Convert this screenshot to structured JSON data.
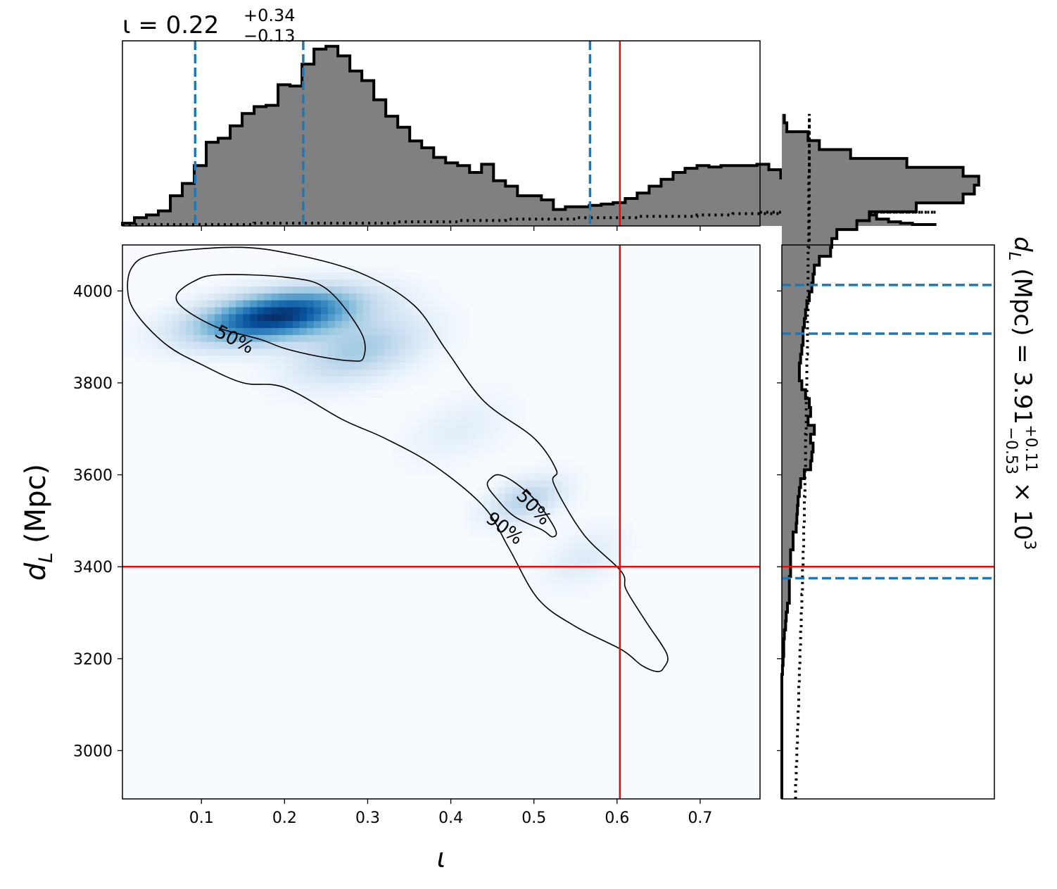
{
  "chart_data": [
    {
      "type": "histogram",
      "panel": "top-marginal",
      "title_lhs": "ι = 0.22",
      "title_sup": "+0.34",
      "title_sub": "−0.13",
      "xlim": [
        0.005,
        0.772
      ],
      "x_edges_start": 0.005,
      "bin_width": 0.0144,
      "heights": [
        2,
        6,
        8,
        11,
        22,
        31,
        44,
        61,
        64,
        73,
        82,
        87,
        88,
        103,
        102,
        118,
        129,
        131,
        124,
        113,
        106,
        92,
        80,
        72,
        62,
        57,
        50,
        46,
        44,
        39,
        45,
        33,
        29,
        22,
        22,
        19,
        12,
        14,
        14,
        15,
        16,
        17,
        20,
        24,
        29,
        34,
        39,
        42,
        44,
        43,
        44,
        44,
        44,
        45,
        41,
        35,
        33,
        22,
        20,
        19,
        18,
        15,
        8,
        5,
        3,
        2,
        1,
        1
      ],
      "prior_dotted": [
        1,
        1,
        1,
        1,
        1,
        1,
        1,
        1,
        1,
        1,
        1,
        2,
        2,
        2,
        2,
        2,
        2,
        2,
        2,
        2,
        2,
        2,
        2,
        3,
        3,
        3,
        3,
        3,
        4,
        4,
        4,
        4,
        5,
        5,
        5,
        5,
        5,
        5,
        6,
        6,
        6,
        6,
        6,
        7,
        7,
        7,
        7,
        7,
        8,
        8,
        8,
        9,
        9,
        9,
        9,
        9,
        9,
        9,
        9,
        10,
        10,
        10,
        10,
        10,
        10,
        10,
        10,
        10
      ],
      "ylim": [
        0,
        135
      ],
      "quantile_lines": [
        0.0925,
        0.2225,
        0.5675
      ],
      "truth_line": 0.6034,
      "quantile_color": "#1f77b4",
      "truth_color": "#ff0000",
      "fill_color": "#808080"
    },
    {
      "type": "heatmap",
      "panel": "joint",
      "xlabel": "ι",
      "ylabel": "d_L (Mpc)",
      "ylabel_main": "d",
      "ylabel_sub": "L",
      "ylabel_unit": " (Mpc)",
      "xlim": [
        0.005,
        0.772
      ],
      "ylim": [
        2895,
        4100
      ],
      "x_ticks": [
        "0.1",
        "0.2",
        "0.3",
        "0.4",
        "0.5",
        "0.6",
        "0.7"
      ],
      "x_tick_values": [
        0.1,
        0.2,
        0.3,
        0.4,
        0.5,
        0.6,
        0.7
      ],
      "y_ticks": [
        "3000",
        "3200",
        "3400",
        "3600",
        "3800",
        "4000"
      ],
      "y_tick_values": [
        3000,
        3200,
        3400,
        3600,
        3800,
        4000
      ],
      "colormap": "Blues",
      "density_peaks": [
        {
          "x": 0.19,
          "y": 3945,
          "amp": 1.0,
          "sx": 0.062,
          "sy": 48
        },
        {
          "x": 0.29,
          "y": 3870,
          "amp": 0.35,
          "sx": 0.05,
          "sy": 60
        },
        {
          "x": 0.49,
          "y": 3545,
          "amp": 0.3,
          "sx": 0.03,
          "sy": 42
        },
        {
          "x": 0.56,
          "y": 3420,
          "amp": 0.12,
          "sx": 0.03,
          "sy": 55
        },
        {
          "x": 0.41,
          "y": 3700,
          "amp": 0.1,
          "sx": 0.04,
          "sy": 60
        }
      ],
      "contour_90": [
        [
          0.016,
          4050
        ],
        [
          0.045,
          4080
        ],
        [
          0.14,
          4095
        ],
        [
          0.21,
          4080
        ],
        [
          0.29,
          4040
        ],
        [
          0.355,
          3970
        ],
        [
          0.395,
          3870
        ],
        [
          0.44,
          3760
        ],
        [
          0.5,
          3680
        ],
        [
          0.527,
          3610
        ],
        [
          0.524,
          3580
        ],
        [
          0.56,
          3470
        ],
        [
          0.605,
          3390
        ],
        [
          0.611,
          3350
        ],
        [
          0.635,
          3280
        ],
        [
          0.66,
          3210
        ],
        [
          0.656,
          3180
        ],
        [
          0.648,
          3172
        ],
        [
          0.63,
          3185
        ],
        [
          0.605,
          3220
        ],
        [
          0.55,
          3270
        ],
        [
          0.505,
          3330
        ],
        [
          0.47,
          3440
        ],
        [
          0.44,
          3530
        ],
        [
          0.38,
          3620
        ],
        [
          0.32,
          3680
        ],
        [
          0.27,
          3720
        ],
        [
          0.2,
          3790
        ],
        [
          0.15,
          3800
        ],
        [
          0.1,
          3840
        ],
        [
          0.06,
          3880
        ],
        [
          0.026,
          3940
        ],
        [
          0.012,
          3990
        ]
      ],
      "contour_50_main": [
        [
          0.07,
          3990
        ],
        [
          0.09,
          4020
        ],
        [
          0.12,
          4035
        ],
        [
          0.2,
          4030
        ],
        [
          0.25,
          4005
        ],
        [
          0.292,
          3910
        ],
        [
          0.295,
          3855
        ],
        [
          0.28,
          3848
        ],
        [
          0.24,
          3858
        ],
        [
          0.2,
          3875
        ],
        [
          0.17,
          3895
        ],
        [
          0.12,
          3920
        ],
        [
          0.08,
          3960
        ]
      ],
      "contour_50_small": [
        [
          0.448,
          3592
        ],
        [
          0.458,
          3600
        ],
        [
          0.478,
          3582
        ],
        [
          0.504,
          3540
        ],
        [
          0.526,
          3480
        ],
        [
          0.522,
          3465
        ],
        [
          0.51,
          3480
        ],
        [
          0.476,
          3510
        ],
        [
          0.452,
          3555
        ],
        [
          0.444,
          3578
        ]
      ],
      "contour_labels": [
        {
          "text": "50%",
          "x": 0.14,
          "y": 3895,
          "angle": 27
        },
        {
          "text": "50%",
          "x": 0.5,
          "y": 3530,
          "angle": 47
        },
        {
          "text": "90%",
          "x": 0.465,
          "y": 3484,
          "angle": 37
        }
      ],
      "truth": {
        "x": 0.6034,
        "y": 3400
      },
      "truth_color": "#ff0000"
    },
    {
      "type": "histogram",
      "panel": "right-marginal",
      "orientation": "horizontal",
      "title_main": "d",
      "title_sub": "L",
      "title_rest": " (Mpc) = 3.91",
      "title_sup": "+0.11",
      "title_sub2": "−0.53",
      "title_times": " × 10",
      "title_exp": "3",
      "ylim": [
        2895,
        4100
      ],
      "y_edges_start": 2895,
      "bin_width": 19.35,
      "widths": [
        0,
        0,
        0,
        0,
        0,
        0,
        0,
        0,
        0,
        0,
        0,
        0,
        0,
        0,
        1,
        2,
        3,
        3,
        4,
        6,
        7,
        9,
        12,
        12,
        12,
        14,
        14,
        14,
        18,
        18,
        23,
        24,
        25,
        26,
        28,
        30,
        36,
        46,
        48,
        50,
        46,
        52,
        42,
        46,
        44,
        38,
        32,
        28,
        28,
        30,
        32,
        34,
        34,
        36,
        38,
        40,
        44,
        48,
        50,
        52,
        60,
        78,
        80,
        88,
        120,
        140,
        215,
        290,
        308,
        315,
        290,
        200,
        110,
        60,
        42,
        8,
        4
      ],
      "prior_dotted": [
        22,
        22,
        23,
        23,
        24,
        24,
        25,
        25,
        26,
        26,
        27,
        27,
        27,
        28,
        28,
        29,
        29,
        30,
        30,
        31,
        31,
        32,
        32,
        33,
        33,
        33,
        34,
        34,
        35,
        35,
        35,
        36,
        36,
        36,
        37,
        37,
        37,
        38,
        38,
        38,
        38,
        39,
        39,
        39,
        39,
        40,
        40,
        40,
        40,
        40,
        41,
        41,
        41,
        41,
        41,
        42,
        42,
        42,
        42,
        42,
        42,
        42,
        43,
        43,
        43,
        43,
        43,
        43,
        43,
        43,
        44,
        44,
        44,
        44,
        44,
        44,
        44
      ],
      "xlim": [
        0,
        340
      ],
      "quantile_lines": [
        3375,
        3907,
        4013
      ],
      "truth_line": 3400,
      "quantile_color": "#1f77b4",
      "truth_color": "#ff0000",
      "fill_color": "#808080"
    }
  ]
}
